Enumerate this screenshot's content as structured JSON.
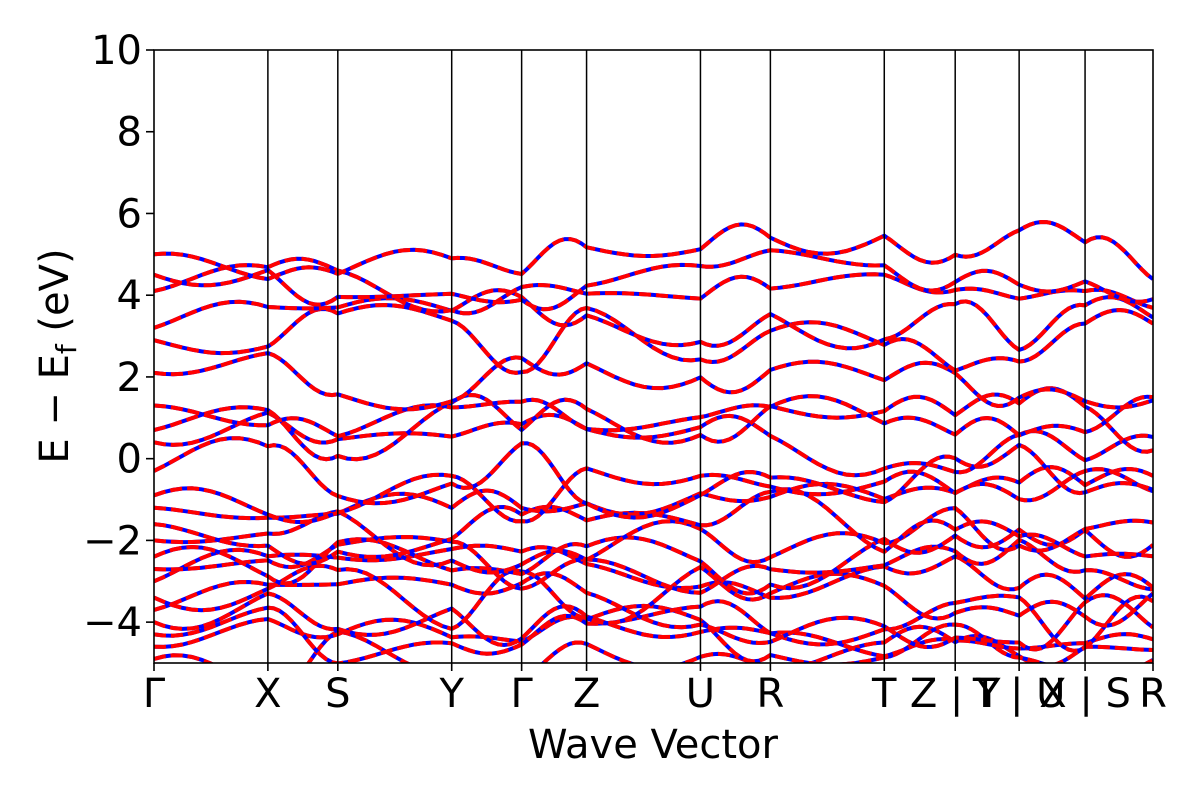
{
  "chart_data": {
    "type": "line",
    "title": "",
    "xlabel": "Wave Vector",
    "ylabel_parts": {
      "main": "E − E",
      "sub": "f",
      "unit": " (eV)"
    },
    "ylim": [
      -5,
      10
    ],
    "yticks": [
      -4,
      -2,
      0,
      2,
      4,
      6,
      8,
      10
    ],
    "ytick_labels": [
      "−4",
      "−2",
      "0",
      "2",
      "4",
      "6",
      "8",
      "10"
    ],
    "kpath_labels": [
      "Γ",
      "X",
      "S",
      "Y",
      "Γ",
      "Z",
      "U",
      "R",
      "T",
      "Z | Y",
      "T | U",
      "X | S",
      "R"
    ],
    "kpath_positions": [
      0.0,
      0.114,
      0.184,
      0.298,
      0.368,
      0.433,
      0.547,
      0.617,
      0.731,
      0.802,
      0.866,
      0.932,
      1.0
    ],
    "grid": false,
    "legend": "none",
    "series": [
      {
        "color": "#0000ff",
        "style": "solid",
        "width": 4
      },
      {
        "color": "#ff0000",
        "style": "dashed",
        "width": 4
      }
    ],
    "band_levels_at_gamma": [
      -4.9,
      -4.6,
      -4.3,
      -4.0,
      -3.7,
      -3.4,
      -3.0,
      -2.7,
      -2.4,
      -2.0,
      -1.6,
      -1.2,
      -0.9,
      -0.3,
      0.4,
      0.7,
      1.3,
      2.1,
      2.9,
      3.2,
      4.1,
      4.5,
      5.0
    ]
  }
}
